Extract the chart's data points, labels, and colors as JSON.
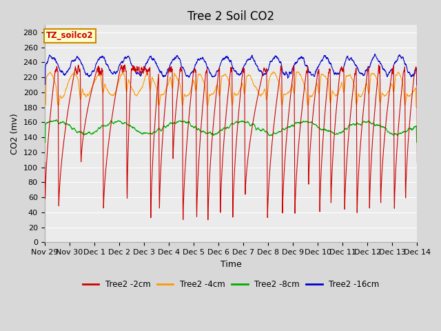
{
  "title": "Tree 2 Soil CO2",
  "xlabel": "Time",
  "ylabel": "CO2 (mv)",
  "legend_label": "TZ_soilco2",
  "series_names": [
    "Tree2 -2cm",
    "Tree2 -4cm",
    "Tree2 -8cm",
    "Tree2 -16cm"
  ],
  "series_colors": [
    "#cc0000",
    "#ff9900",
    "#00aa00",
    "#0000cc"
  ],
  "x_tick_labels": [
    "Nov 29",
    "Nov 30",
    "Dec 1",
    "Dec 2",
    "Dec 3",
    "Dec 4",
    "Dec 5",
    "Dec 6",
    "Dec 7",
    "Dec 8",
    "Dec 9",
    "Dec 10",
    "Dec 11",
    "Dec 12",
    "Dec 13",
    "Dec 14"
  ],
  "ylim": [
    0,
    290
  ],
  "yticks": [
    0,
    20,
    40,
    60,
    80,
    100,
    120,
    140,
    160,
    180,
    200,
    220,
    240,
    260,
    280
  ],
  "bg_color": "#d8d8d8",
  "plot_bg_color": "#ebebeb",
  "grid_color": "#ffffff",
  "title_fontsize": 12,
  "axis_label_fontsize": 9,
  "tick_fontsize": 8,
  "legend_box_facecolor": "#ffffcc",
  "legend_box_edgecolor": "#cc8800",
  "legend_text_color": "#cc0000"
}
